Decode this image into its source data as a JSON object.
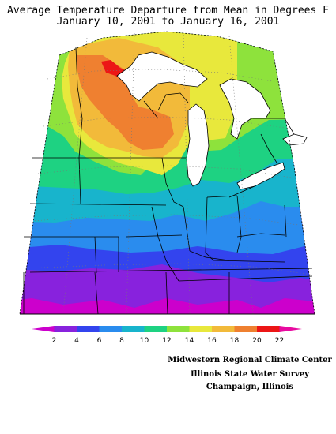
{
  "title": {
    "line1": "Average Temperature Departure from Mean in Degrees F",
    "line2": "January 10, 2001  to January 16, 2001"
  },
  "legend": {
    "unit": "Degrees F",
    "labels": [
      "2",
      "4",
      "6",
      "8",
      "10",
      "12",
      "14",
      "16",
      "18",
      "20",
      "22"
    ],
    "colors": [
      "#cc00cc",
      "#8822dd",
      "#3344ee",
      "#2a8cee",
      "#18b4cc",
      "#1ed282",
      "#8ee23c",
      "#e8e83c",
      "#f2ba3a",
      "#ef8030",
      "#ec1616",
      "#e80aa0"
    ]
  },
  "credits": {
    "line1": "Midwestern Regional Climate Center",
    "line2": "Illinois State Water Survey",
    "line3": "Champaign, Illinois"
  },
  "chart_data": {
    "type": "heatmap",
    "variable": "Average temperature departure from mean",
    "unit": "°F",
    "color_scale_breaks": [
      2,
      4,
      6,
      8,
      10,
      12,
      14,
      16,
      18,
      20,
      22
    ],
    "approximate_departure_by_area": {
      "northern Minnesota (far north)": 20,
      "northern Minnesota / northwest Wisconsin": 18,
      "central Minnesota & Wisconsin": 16,
      "southern Minnesota & Wisconsin / Michigan": 14,
      "Iowa / northern Illinois / Michigan lower": 12,
      "Missouri / central Illinois / Indiana / Ohio": 8,
      "Kentucky / southern Missouri": 6,
      "Tennessee": 4,
      "far south edge": 2
    }
  }
}
